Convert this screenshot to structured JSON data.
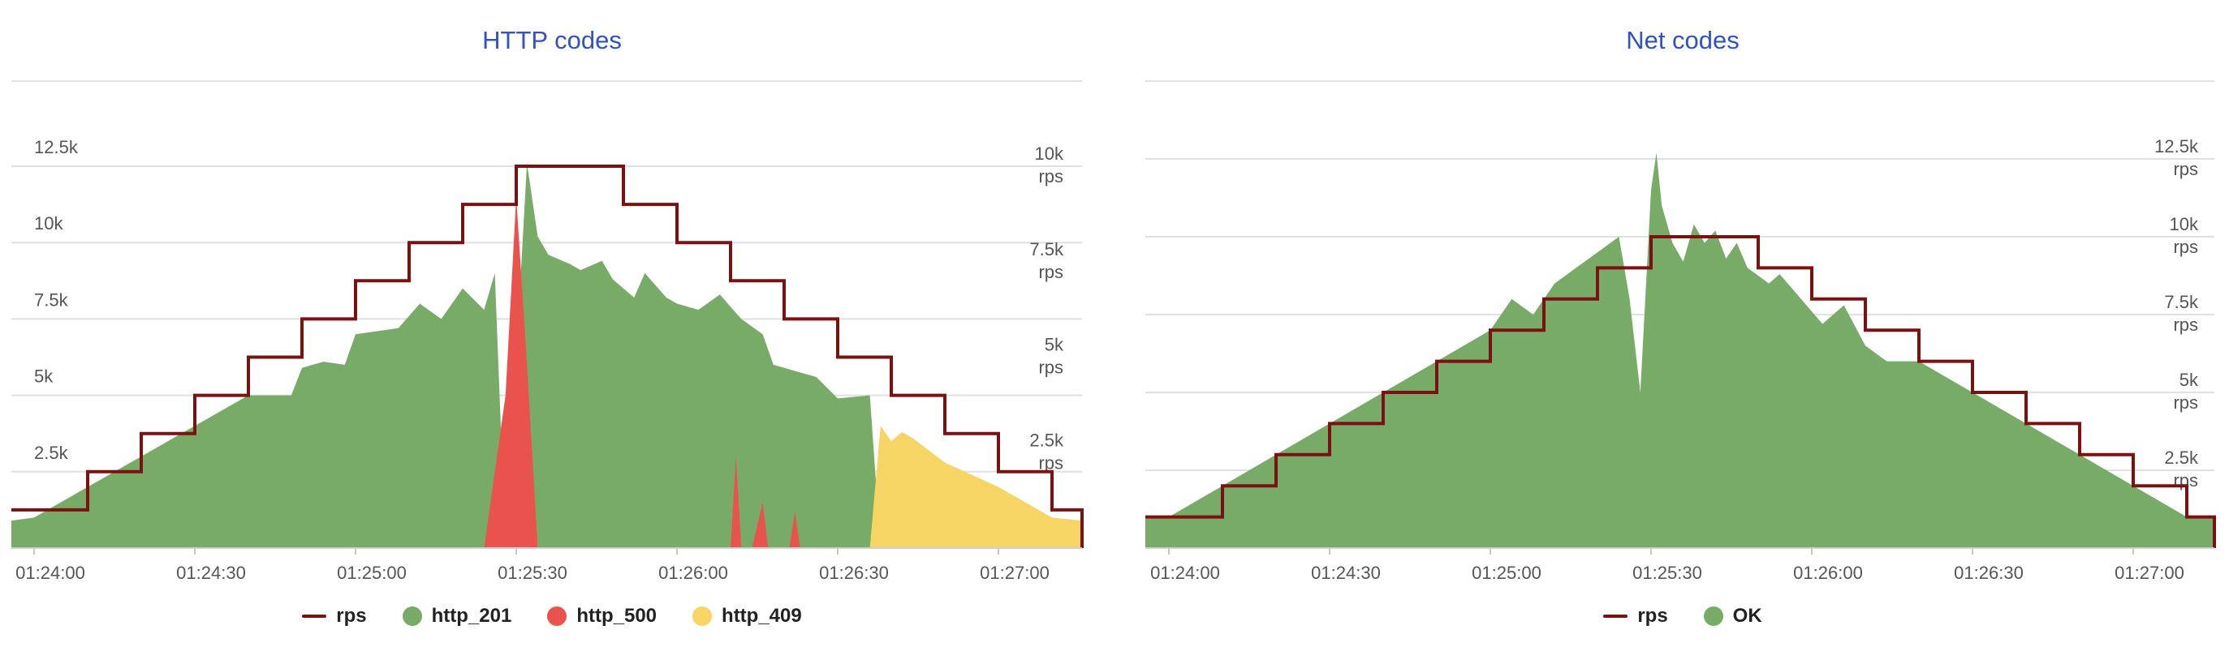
{
  "chart_data": [
    {
      "type": "area",
      "title": "HTTP codes",
      "x": [
        "01:24:00",
        "01:24:30",
        "01:25:00",
        "01:25:30",
        "01:26:00",
        "01:26:30",
        "01:27:00"
      ],
      "left_axis_ticks": [
        "2.5k",
        "5k",
        "7.5k",
        "10k",
        "12.5k"
      ],
      "right_axis_ticks": [
        "2.5k",
        "5k",
        "7.5k",
        "10k"
      ],
      "right_axis_unit": "rps",
      "ylim_left": [
        0,
        12500
      ],
      "ylim_right": [
        0,
        10000
      ],
      "grid": true,
      "legend_position": "bottom",
      "series": [
        {
          "name": "rps",
          "kind": "step-line",
          "axis": "right",
          "color": "#7a1212",
          "steps": [
            [
              0,
              1000
            ],
            [
              10,
              2000
            ],
            [
              20,
              3000
            ],
            [
              30,
              4000
            ],
            [
              40,
              5000
            ],
            [
              50,
              6000
            ],
            [
              60,
              7000
            ],
            [
              70,
              8000
            ],
            [
              80,
              9000
            ],
            [
              90,
              10000
            ],
            [
              100,
              10000
            ],
            [
              110,
              9000
            ],
            [
              120,
              8000
            ],
            [
              130,
              7000
            ],
            [
              140,
              6000
            ],
            [
              150,
              5000
            ],
            [
              160,
              4000
            ],
            [
              170,
              3000
            ],
            [
              180,
              2000
            ],
            [
              190,
              1000
            ],
            [
              198,
              0
            ]
          ]
        },
        {
          "name": "http_201",
          "kind": "area",
          "axis": "left",
          "color": "#78ab67",
          "points": [
            [
              -6,
              900
            ],
            [
              0,
              1000
            ],
            [
              10,
              2000
            ],
            [
              20,
              3000
            ],
            [
              30,
              4000
            ],
            [
              40,
              5000
            ],
            [
              48,
              5000
            ],
            [
              50,
              5900
            ],
            [
              54,
              6100
            ],
            [
              58,
              6000
            ],
            [
              60,
              7000
            ],
            [
              68,
              7200
            ],
            [
              72,
              8000
            ],
            [
              76,
              7500
            ],
            [
              80,
              8500
            ],
            [
              84,
              7800
            ],
            [
              86,
              9000
            ],
            [
              88,
              0
            ],
            [
              92,
              12600
            ],
            [
              94,
              10200
            ],
            [
              96,
              9600
            ],
            [
              100,
              9300
            ],
            [
              102,
              9100
            ],
            [
              106,
              9400
            ],
            [
              108,
              8800
            ],
            [
              112,
              8200
            ],
            [
              114,
              9000
            ],
            [
              118,
              8200
            ],
            [
              120,
              8000
            ],
            [
              124,
              7800
            ],
            [
              128,
              8300
            ],
            [
              132,
              7500
            ],
            [
              136,
              7000
            ],
            [
              138,
              6000
            ],
            [
              142,
              5800
            ],
            [
              146,
              5600
            ],
            [
              150,
              4900
            ],
            [
              156,
              5000
            ],
            [
              158,
              0
            ],
            [
              200,
              0
            ]
          ]
        },
        {
          "name": "http_500",
          "kind": "area",
          "axis": "left",
          "color": "#e9524d",
          "points": [
            [
              84,
              0
            ],
            [
              88,
              5000
            ],
            [
              90,
              11500
            ],
            [
              92,
              6000
            ],
            [
              94,
              0
            ],
            [
              130,
              0
            ],
            [
              131,
              3000
            ],
            [
              132,
              0
            ],
            [
              134,
              0
            ],
            [
              136,
              1500
            ],
            [
              137,
              0
            ],
            [
              141,
              0
            ],
            [
              142,
              1200
            ],
            [
              143,
              0
            ]
          ]
        },
        {
          "name": "http_409",
          "kind": "area",
          "axis": "left",
          "color": "#f7d564",
          "points": [
            [
              156,
              0
            ],
            [
              158,
              4000
            ],
            [
              160,
              3500
            ],
            [
              162,
              3800
            ],
            [
              164,
              3600
            ],
            [
              170,
              2800
            ],
            [
              180,
              2000
            ],
            [
              190,
              1000
            ],
            [
              198,
              900
            ],
            [
              200,
              900
            ],
            [
              200,
              0
            ]
          ]
        }
      ],
      "legend": [
        "rps",
        "http_201",
        "http_500",
        "http_409"
      ]
    },
    {
      "type": "area",
      "title": "Net codes",
      "x": [
        "01:24:00",
        "01:24:30",
        "01:25:00",
        "01:25:30",
        "01:26:00",
        "01:26:30",
        "01:27:00"
      ],
      "right_axis_ticks": [
        "2.5k",
        "5k",
        "7.5k",
        "10k",
        "12.5k"
      ],
      "right_axis_unit": "rps",
      "ylim": [
        0,
        12500
      ],
      "grid": true,
      "legend_position": "bottom",
      "series": [
        {
          "name": "rps",
          "kind": "step-line",
          "color": "#7a1212",
          "steps": [
            [
              0,
              1000
            ],
            [
              10,
              2000
            ],
            [
              20,
              3000
            ],
            [
              30,
              4000
            ],
            [
              40,
              5000
            ],
            [
              50,
              6000
            ],
            [
              60,
              7000
            ],
            [
              70,
              8000
            ],
            [
              80,
              9000
            ],
            [
              90,
              10000
            ],
            [
              100,
              10000
            ],
            [
              110,
              9000
            ],
            [
              120,
              8000
            ],
            [
              130,
              7000
            ],
            [
              140,
              6000
            ],
            [
              150,
              5000
            ],
            [
              160,
              4000
            ],
            [
              170,
              3000
            ],
            [
              180,
              2000
            ],
            [
              190,
              1000
            ],
            [
              198,
              0
            ]
          ]
        },
        {
          "name": "OK",
          "kind": "area",
          "color": "#78ab67",
          "points": [
            [
              -6,
              1000
            ],
            [
              0,
              1000
            ],
            [
              10,
              2000
            ],
            [
              20,
              3000
            ],
            [
              30,
              4000
            ],
            [
              40,
              5000
            ],
            [
              50,
              6000
            ],
            [
              60,
              7000
            ],
            [
              64,
              8000
            ],
            [
              68,
              7500
            ],
            [
              72,
              8500
            ],
            [
              76,
              9000
            ],
            [
              80,
              9500
            ],
            [
              84,
              10000
            ],
            [
              86,
              8000
            ],
            [
              88,
              5000
            ],
            [
              90,
              11500
            ],
            [
              91,
              12700
            ],
            [
              92,
              11000
            ],
            [
              94,
              9800
            ],
            [
              96,
              9200
            ],
            [
              98,
              10400
            ],
            [
              100,
              9800
            ],
            [
              102,
              10200
            ],
            [
              104,
              9300
            ],
            [
              106,
              9800
            ],
            [
              108,
              9000
            ],
            [
              112,
              8500
            ],
            [
              114,
              8800
            ],
            [
              118,
              8000
            ],
            [
              122,
              7200
            ],
            [
              126,
              7800
            ],
            [
              130,
              6500
            ],
            [
              134,
              6000
            ],
            [
              140,
              6000
            ],
            [
              150,
              5000
            ],
            [
              160,
              4000
            ],
            [
              170,
              3000
            ],
            [
              180,
              2000
            ],
            [
              190,
              1000
            ],
            [
              198,
              1000
            ],
            [
              200,
              1000
            ],
            [
              200,
              0
            ]
          ]
        }
      ],
      "legend": [
        "rps",
        "OK"
      ]
    }
  ]
}
